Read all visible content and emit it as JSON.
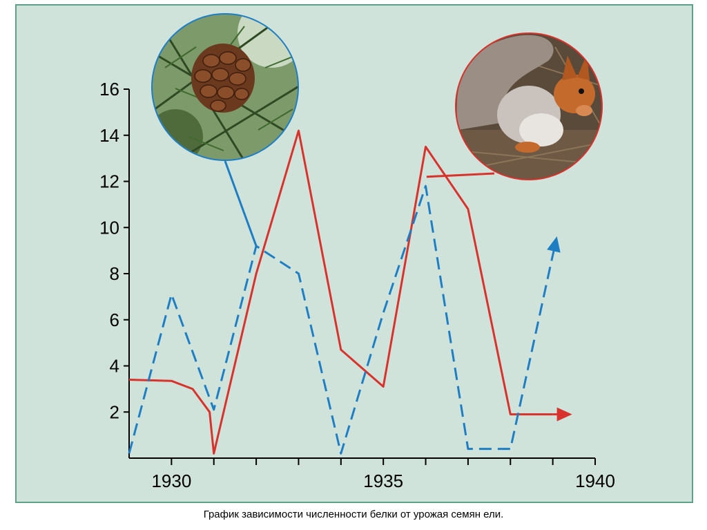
{
  "chart_data": {
    "type": "line",
    "x_ticks": [
      1930,
      1935,
      1940
    ],
    "y_ticks": [
      2,
      4,
      6,
      8,
      10,
      12,
      14,
      16
    ],
    "xlim": [
      1929,
      1940
    ],
    "ylim": [
      0,
      16
    ],
    "grid": false,
    "series": [
      {
        "style": "solid",
        "color": "#d9312b",
        "icon": "squirrel-icon",
        "points": [
          [
            1929,
            3.4
          ],
          [
            1930,
            3.35
          ],
          [
            1930.5,
            3.0
          ],
          [
            1930.9,
            2.0
          ],
          [
            1931,
            0.2
          ],
          [
            1932,
            8
          ],
          [
            1933,
            14.2
          ],
          [
            1934,
            4.7
          ],
          [
            1935,
            3.1
          ],
          [
            1936,
            13.5
          ],
          [
            1937,
            10.8
          ],
          [
            1938,
            1.9
          ],
          [
            1939,
            1.9
          ]
        ]
      },
      {
        "style": "dashed",
        "color": "#1e7ec4",
        "icon": "spruce-cone-icon",
        "points": [
          [
            1929,
            0.2
          ],
          [
            1930,
            7.1
          ],
          [
            1931,
            2.1
          ],
          [
            1932,
            9.2
          ],
          [
            1933,
            8.0
          ],
          [
            1934,
            0.2
          ],
          [
            1935,
            6.3
          ],
          [
            1936,
            11.8
          ],
          [
            1937,
            0.4
          ],
          [
            1938,
            0.4
          ],
          [
            1939,
            8.8
          ]
        ]
      }
    ]
  },
  "caption": "График зависимости численности белки от урожая семян  ели."
}
